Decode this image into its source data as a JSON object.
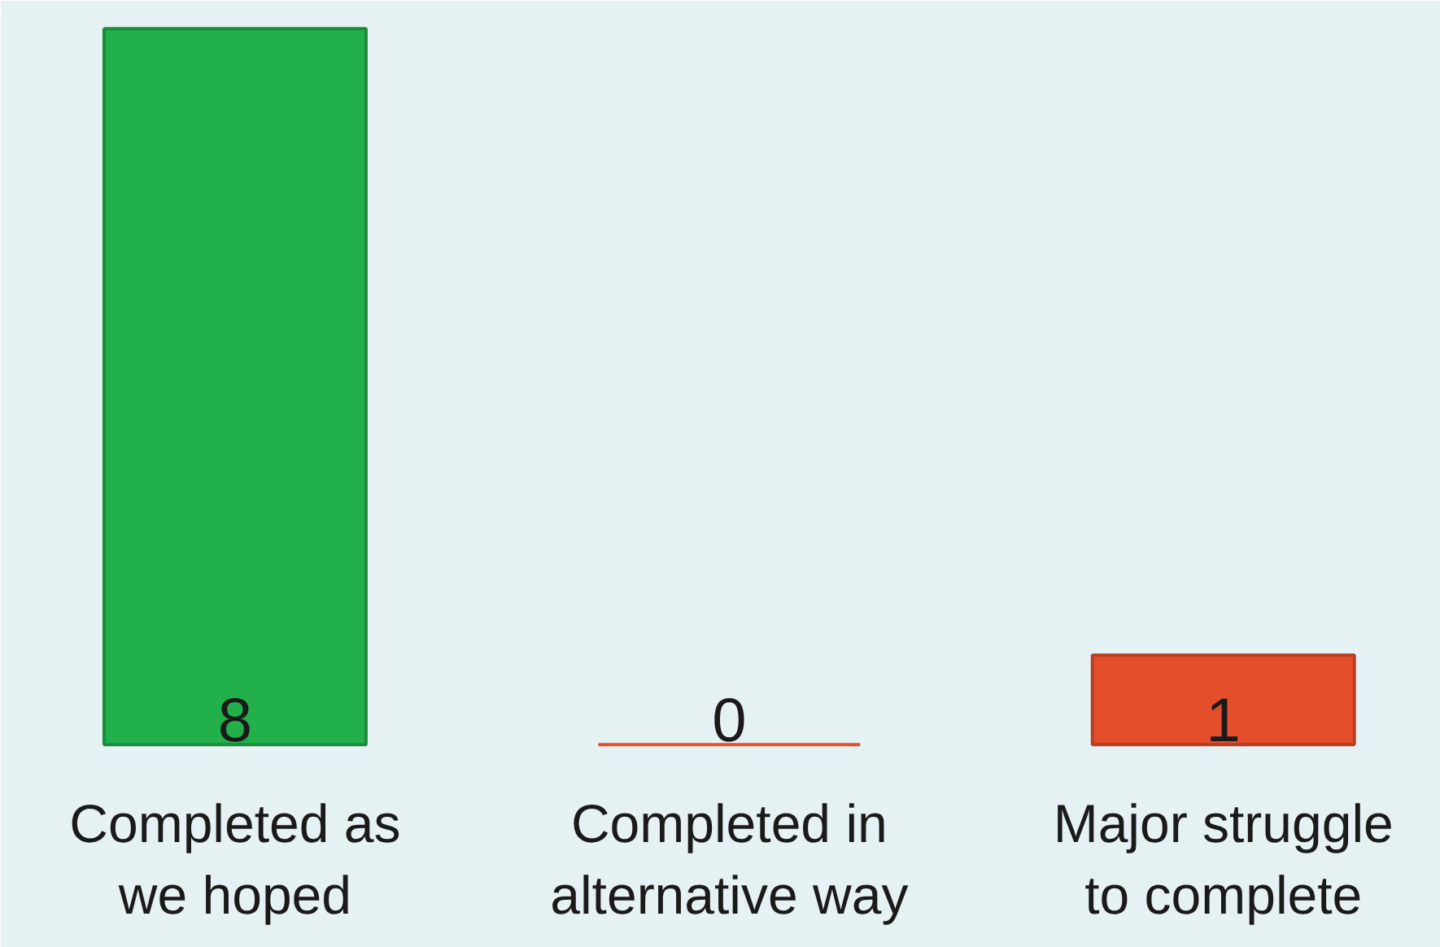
{
  "chart_data": {
    "type": "bar",
    "categories": [
      "Completed as\nwe hoped",
      "Completed in\nalternative way",
      "Major struggle\nto complete"
    ],
    "values": [
      8,
      0,
      1
    ],
    "colors": [
      "#22b04b",
      "#e54e2b",
      "#e54e2b"
    ],
    "data_labels": true
  }
}
